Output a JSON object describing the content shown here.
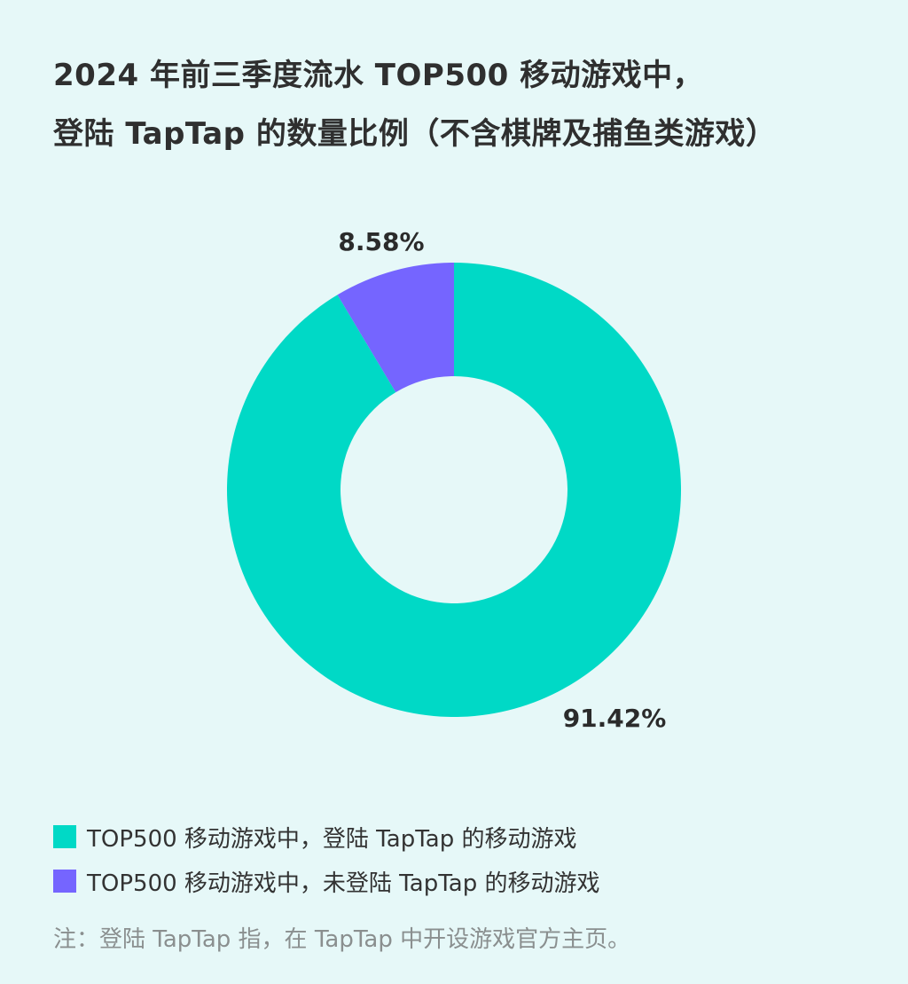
{
  "title": {
    "line1": "2024 年前三季度流水 TOP500 移动游戏中，",
    "line2": "登陆 TapTap 的数量比例（不含棋牌及捕鱼类游戏）"
  },
  "colors": {
    "background": "#e6f8f8",
    "registered": "#00d9c6",
    "unregistered": "#7565ff"
  },
  "chart_data": {
    "type": "pie",
    "donut": true,
    "title": "2024 年前三季度流水 TOP500 移动游戏中，登陆 TapTap 的数量比例（不含棋牌及捕鱼类游戏）",
    "legend_position": "bottom-left",
    "slices": [
      {
        "label": "TOP500 移动游戏中，登陆 TapTap 的移动游戏",
        "value": 91.42,
        "display": "91.42%",
        "color": "#00d9c6"
      },
      {
        "label": "TOP500 移动游戏中，未登陆 TapTap 的移动游戏",
        "value": 8.58,
        "display": "8.58%",
        "color": "#7565ff"
      }
    ]
  },
  "footnote": "注：登陆 TapTap 指，在 TapTap 中开设游戏官方主页。"
}
